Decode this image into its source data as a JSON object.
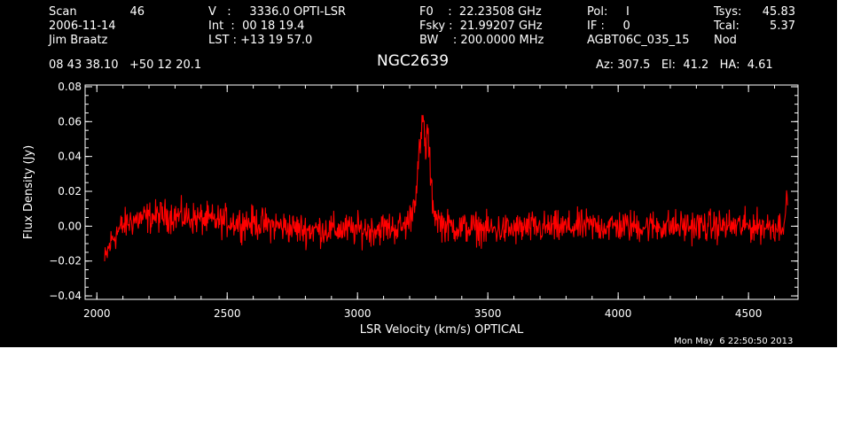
{
  "header": {
    "col1": {
      "scan_label": "Scan",
      "scan_value": "46",
      "date": "2006-11-14",
      "observer": "Jim Braatz"
    },
    "col2": {
      "v_line": "V   :     3336.0 OPTI-LSR",
      "int_line": "Int  :  00 18 19.4",
      "lst_line": "LST : +13 19 57.0"
    },
    "col3": {
      "f0_line": "F0    :  22.23508 GHz",
      "fsky_line": "Fsky :  21.99207 GHz",
      "bw_line": "BW    : 200.0000 MHz"
    },
    "col4": {
      "pol_line": "Pol:     I",
      "if_line": "IF :     0",
      "project": "AGBT06C_035_15"
    },
    "col5": {
      "tsys_label": "Tsys:",
      "tsys_value": "45.83",
      "tcal_label": "Tcal:",
      "tcal_value": "5.37",
      "mode": "Nod"
    },
    "coords": "08 43 38.10   +50 12 20.1",
    "source": "NGC2639",
    "azelha": "Az: 307.5   El:  41.2   HA:  4.61"
  },
  "timestamp": "Mon May  6 22:50:50 2013",
  "colors": {
    "background": "#000000",
    "axes": "#ffffff",
    "series": "#ff0000"
  },
  "chart_data": {
    "type": "line",
    "title": "NGC2639",
    "xlabel": "LSR Velocity (km/s) OPTICAL",
    "ylabel": "Flux Density (Jy)",
    "xlim": [
      1955,
      4690
    ],
    "ylim": [
      -0.042,
      0.081
    ],
    "x_ticks": [
      2000,
      2500,
      3000,
      3500,
      4000,
      4500
    ],
    "x_tick_labels": [
      "2000",
      "2500",
      "3000",
      "3500",
      "4000",
      "4500"
    ],
    "y_ticks": [
      -0.04,
      -0.02,
      0.0,
      0.02,
      0.04,
      0.06,
      0.08
    ],
    "y_tick_labels": [
      "−0.04",
      "−0.02",
      "0.00",
      "0.02",
      "0.04",
      "0.06",
      "0.08"
    ],
    "grid": false,
    "legend": "none",
    "series": [
      {
        "x": [
          2030,
          2045,
          2060,
          2080,
          2100,
          2130,
          2160,
          2200,
          2250,
          2300,
          2350,
          2400,
          2450,
          2500,
          2550,
          2600,
          2650,
          2700,
          2750,
          2800,
          2850,
          2900,
          2950,
          3000,
          3050,
          3100,
          3150,
          3180,
          3200,
          3215,
          3225,
          3235,
          3245,
          3252,
          3258,
          3263,
          3268,
          3274,
          3280,
          3288,
          3295,
          3305,
          3320,
          3340,
          3360,
          3400,
          3450,
          3500,
          3550,
          3600,
          3650,
          3700,
          3750,
          3800,
          3850,
          3900,
          3950,
          4000,
          4050,
          4100,
          4150,
          4200,
          4250,
          4300,
          4350,
          4400,
          4450,
          4500,
          4550,
          4580,
          4600,
          4620,
          4635,
          4645,
          4650
        ],
        "y": [
          -0.021,
          -0.013,
          -0.007,
          -0.003,
          0.0,
          0.003,
          0.004,
          0.005,
          0.006,
          0.006,
          0.005,
          0.004,
          0.003,
          0.003,
          0.002,
          0.002,
          0.001,
          0.0,
          -0.001,
          -0.002,
          -0.002,
          -0.002,
          -0.002,
          -0.002,
          -0.002,
          -0.001,
          -0.001,
          0.0,
          0.004,
          0.012,
          0.022,
          0.038,
          0.052,
          0.062,
          0.05,
          0.04,
          0.058,
          0.045,
          0.028,
          0.015,
          0.008,
          0.005,
          0.002,
          0.0,
          0.0,
          -0.001,
          -0.001,
          -0.002,
          -0.002,
          -0.002,
          -0.001,
          -0.001,
          -0.001,
          -0.001,
          0.0,
          0.0,
          0.0,
          0.0,
          0.0,
          0.0,
          0.0,
          0.0,
          0.0,
          0.0,
          0.0,
          0.0,
          0.0,
          0.0,
          0.0,
          0.0,
          0.0,
          0.0,
          0.004,
          0.01,
          0.016
        ]
      }
    ]
  }
}
